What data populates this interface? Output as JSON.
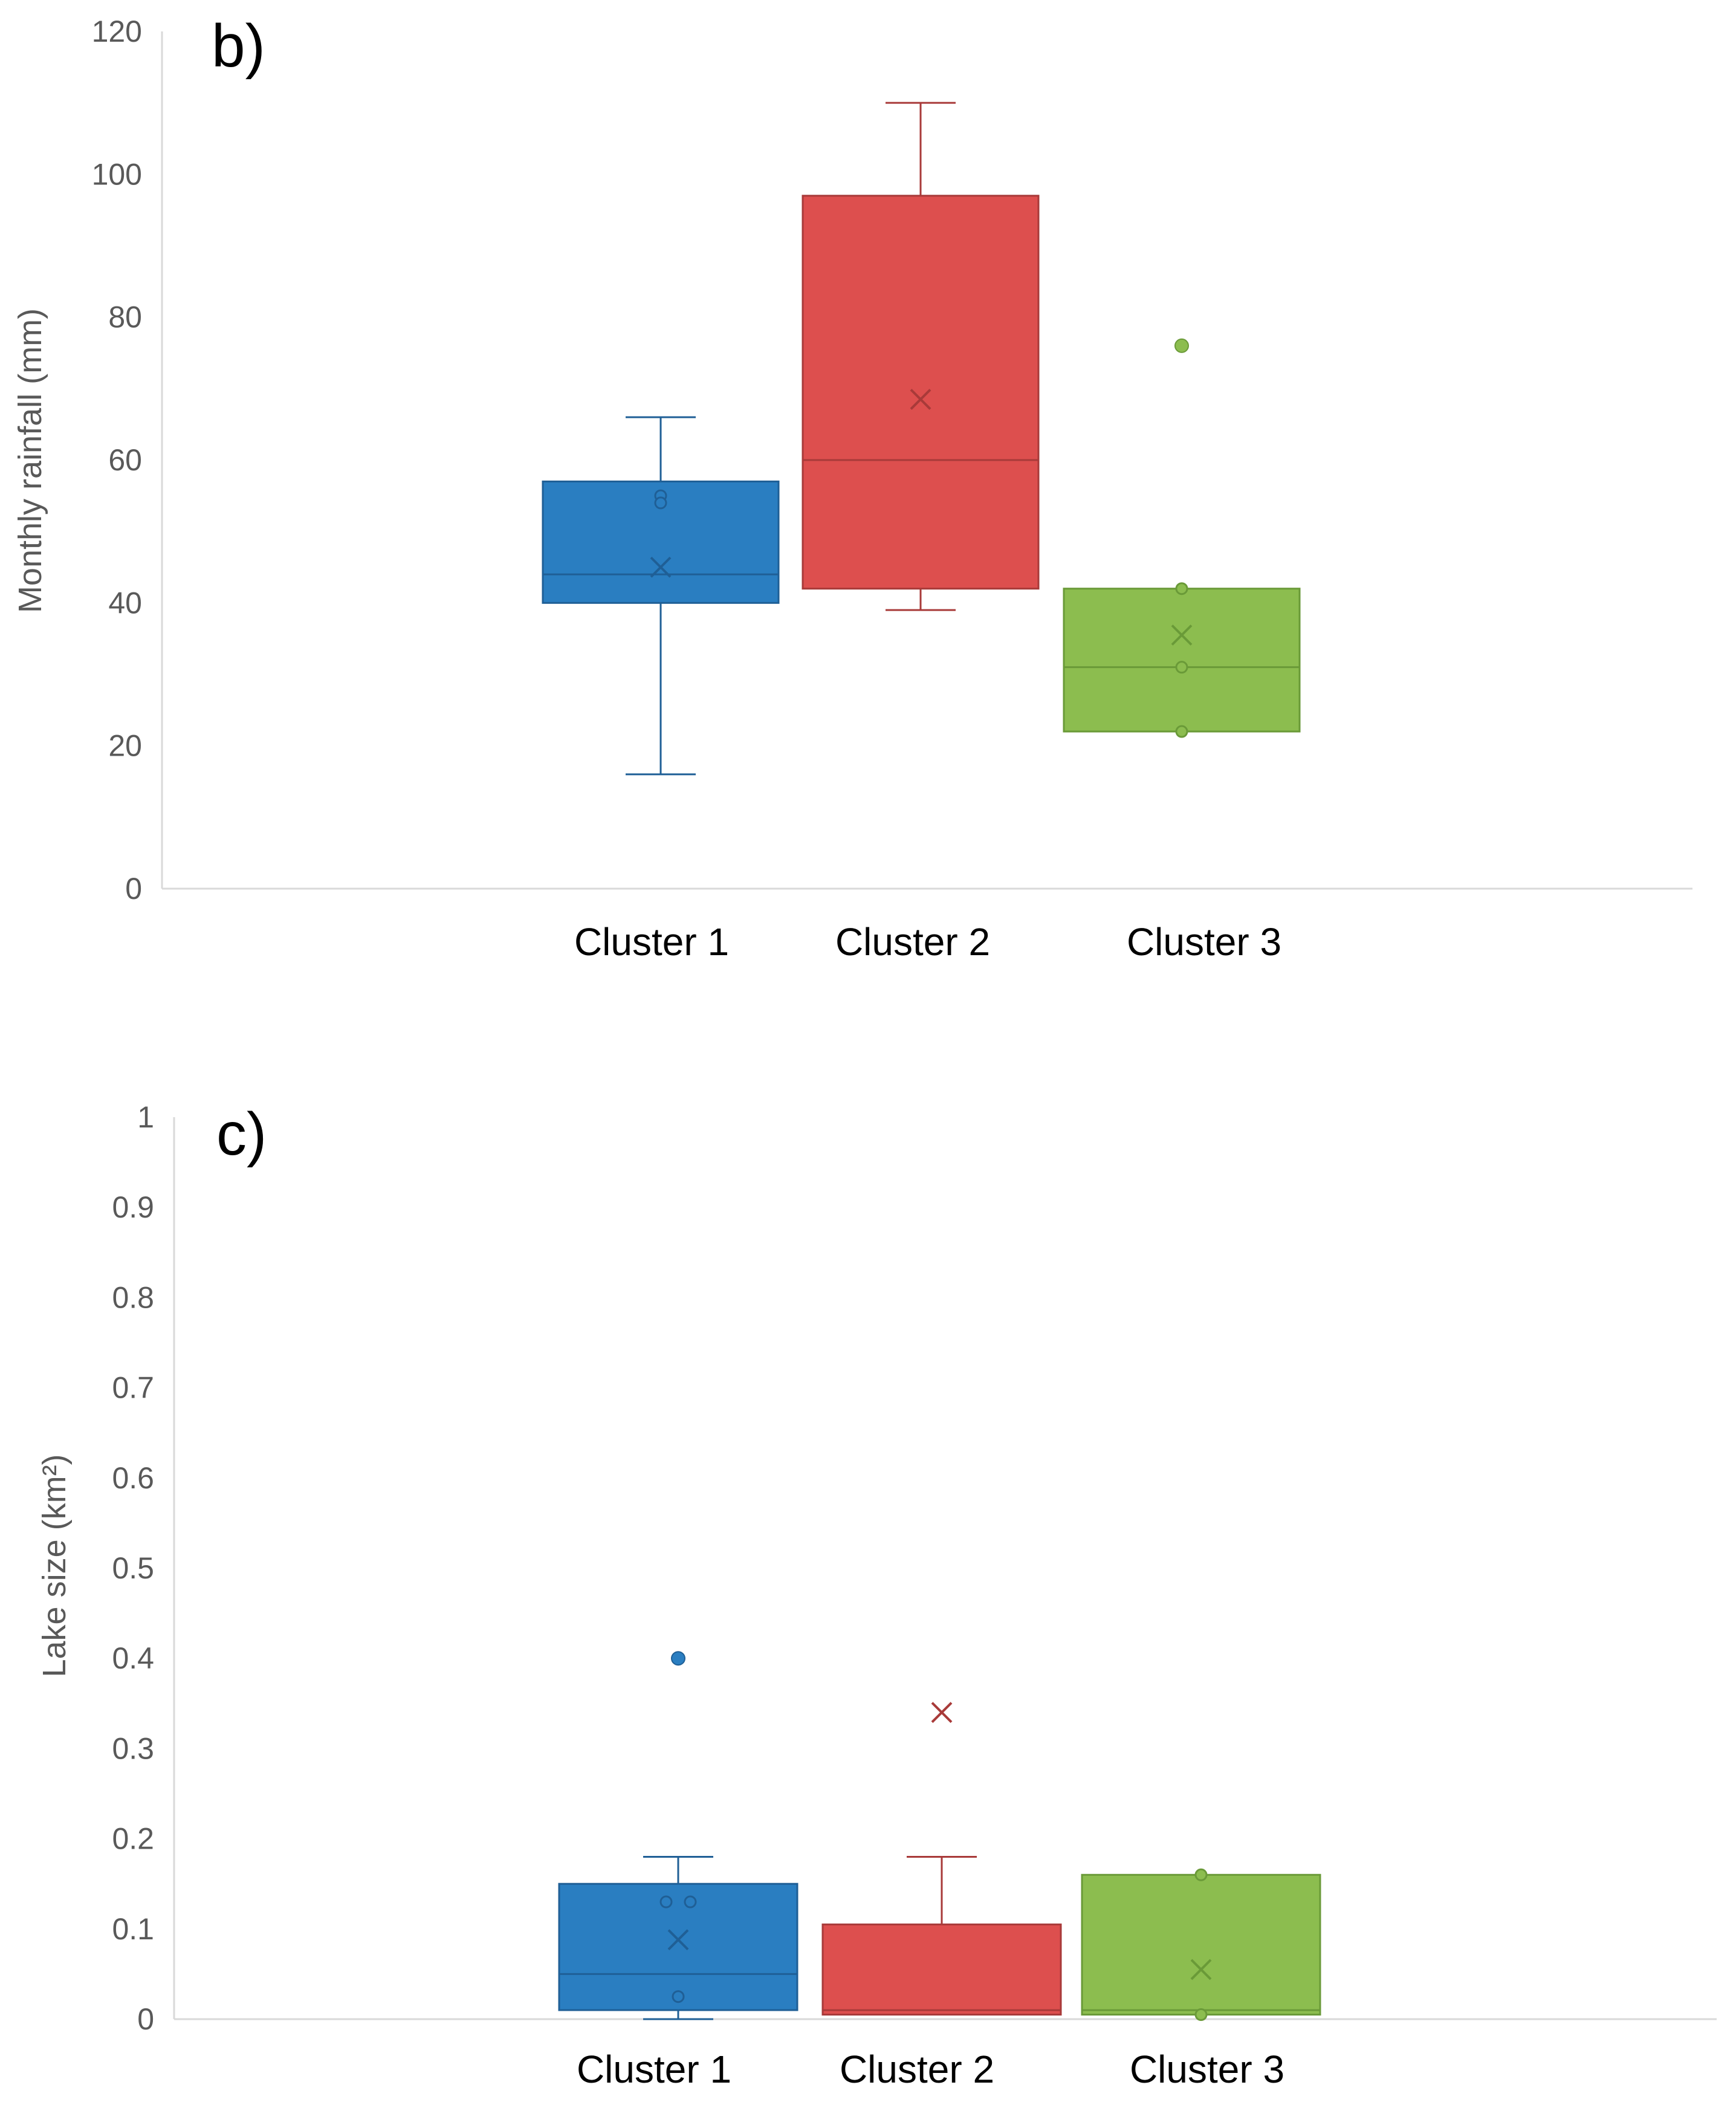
{
  "chart_data": [
    {
      "type": "box",
      "panel_label": "b)",
      "ylabel": "Monthly rainfall (mm)",
      "ylim": [
        0,
        120
      ],
      "yticks": [
        "0",
        "20",
        "40",
        "60",
        "80",
        "100",
        "120"
      ],
      "categories": [
        "Cluster 1",
        "Cluster 2",
        "Cluster 3"
      ],
      "colors": [
        "#2a7ec1",
        "#dd4f4e",
        "#8cbd4f"
      ],
      "edge_colors": [
        "#1f5f96",
        "#a83a39",
        "#6a9a38"
      ],
      "boxes": [
        {
          "name": "Cluster 1",
          "whisker_low": 16,
          "q1": 40,
          "median": 44,
          "q3": 57,
          "whisker_high": 66,
          "mean": 45,
          "inner_points": [
            55,
            54
          ],
          "outliers": []
        },
        {
          "name": "Cluster 2",
          "whisker_low": 39,
          "q1": 42,
          "median": 60,
          "q3": 97,
          "whisker_high": 110,
          "mean": 68.5,
          "inner_points": [],
          "outliers": []
        },
        {
          "name": "Cluster 3",
          "whisker_low": 22,
          "q1": 22,
          "median": 31,
          "q3": 42,
          "whisker_high": 42,
          "mean": 35.5,
          "inner_points": [
            22,
            31,
            42
          ],
          "outliers": [
            76
          ]
        }
      ]
    },
    {
      "type": "box",
      "panel_label": "c)",
      "ylabel": "Lake size (km²)",
      "ylim": [
        0,
        1
      ],
      "yticks": [
        "0",
        "0.1",
        "0.2",
        "0.3",
        "0.4",
        "0.5",
        "0.6",
        "0.7",
        "0.8",
        "0.9",
        "1"
      ],
      "categories": [
        "Cluster 1",
        "Cluster 2",
        "Cluster 3"
      ],
      "colors": [
        "#2a7ec1",
        "#dd4f4e",
        "#8cbd4f"
      ],
      "edge_colors": [
        "#1f5f96",
        "#a83a39",
        "#6a9a38"
      ],
      "boxes": [
        {
          "name": "Cluster 1",
          "whisker_low": 0,
          "q1": 0.01,
          "median": 0.05,
          "q3": 0.15,
          "whisker_high": 0.18,
          "mean": 0.088,
          "inner_points": [
            0.13,
            0.13,
            0.025
          ],
          "outliers": [
            0.4
          ]
        },
        {
          "name": "Cluster 2",
          "whisker_low": 0.005,
          "q1": 0.005,
          "median": 0.01,
          "q3": 0.105,
          "whisker_high": 0.18,
          "mean": 0.34,
          "inner_points": [],
          "outliers": []
        },
        {
          "name": "Cluster 3",
          "whisker_low": 0.005,
          "q1": 0.005,
          "median": 0.01,
          "q3": 0.16,
          "whisker_high": 0.16,
          "mean": 0.055,
          "inner_points": [
            0.16,
            0.005
          ],
          "outliers": []
        }
      ]
    }
  ]
}
